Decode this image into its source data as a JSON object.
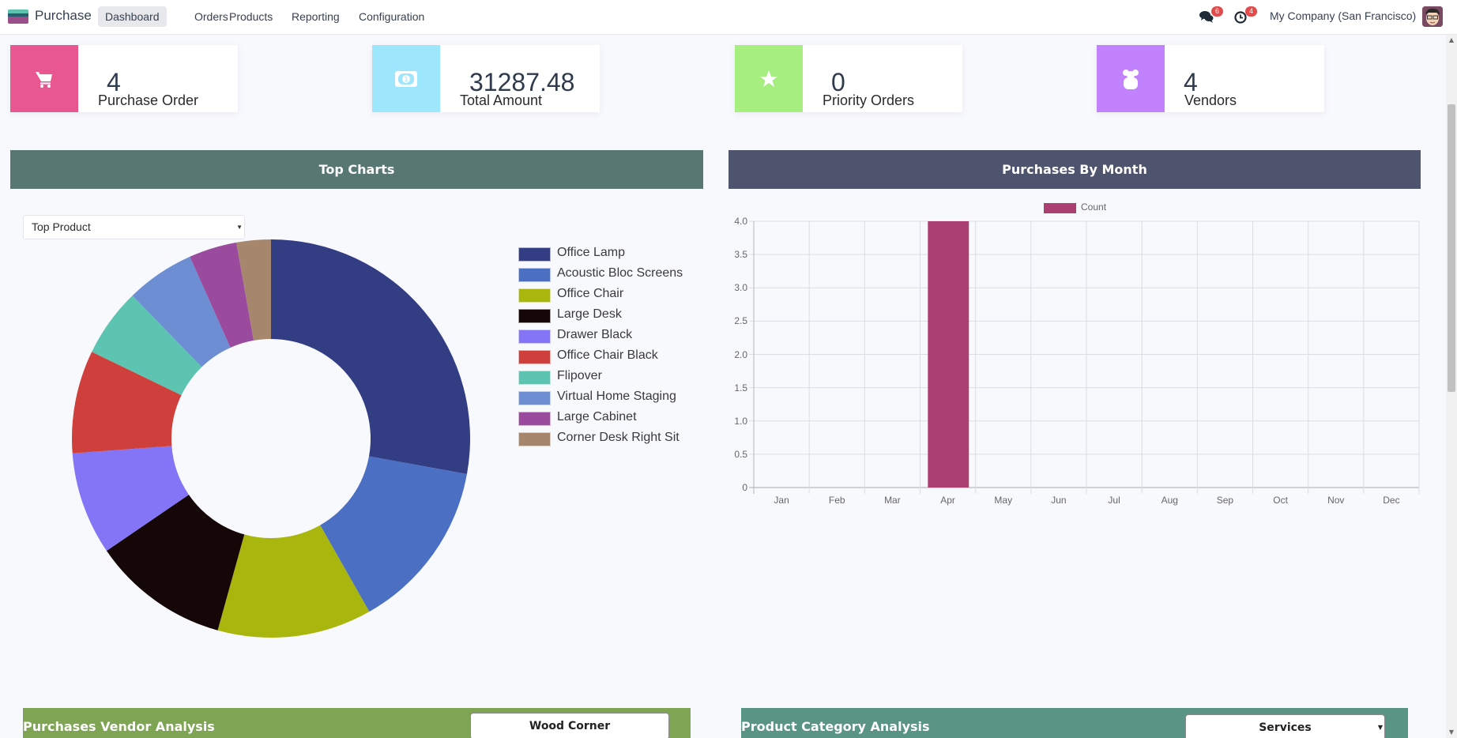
{
  "navbar": {
    "app_name": "Purchase",
    "menu": [
      "Dashboard",
      "Orders",
      "Products",
      "Reporting",
      "Configuration"
    ],
    "active_menu": "Dashboard",
    "messages_badge": "6",
    "activities_badge": "4",
    "company": "My Company (San Francisco)"
  },
  "kpis": [
    {
      "value": "4",
      "label": "Purchase Order",
      "icon": "cart-icon",
      "color": "#e8578f"
    },
    {
      "value": "31287.48",
      "label": "Total Amount",
      "icon": "money-icon",
      "color": "#9de6fb"
    },
    {
      "value": "0",
      "label": "Priority Orders",
      "icon": "star-icon",
      "color": "#a6ee7f"
    },
    {
      "value": "4",
      "label": "Vendors",
      "icon": "users-icon",
      "color": "#c281fd"
    }
  ],
  "top_charts": {
    "title": "Top Charts",
    "header_color": "#587672",
    "select_value": "Top Product"
  },
  "purchases_by_month": {
    "title": "Purchases By Month",
    "header_color": "#4e546e"
  },
  "bottom": {
    "vendor_title": "Purchases Vendor Analysis",
    "vendor_button": "Wood Corner",
    "vendor_color": "#7ea454",
    "category_title": "Product Category Analysis",
    "category_select": "Services",
    "category_color": "#5a9485"
  },
  "chart_data": [
    {
      "type": "pie",
      "variant": "doughnut",
      "title": "Top Product",
      "categories": [
        "Office Lamp",
        "Acoustic Bloc Screens",
        "Office Chair",
        "Large Desk",
        "Drawer Black",
        "Office Chair Black",
        "Flipover",
        "Virtual Home Staging",
        "Large Cabinet",
        "Corner Desk Right Sit"
      ],
      "values": [
        10,
        5,
        4.5,
        4,
        3,
        3,
        2,
        2,
        1.4,
        1
      ],
      "colors": [
        "#333d83",
        "#4a6fc3",
        "#a8b60e",
        "#150607",
        "#8375f5",
        "#cf403d",
        "#5dc4b1",
        "#6d8ed3",
        "#9a4b9e",
        "#a6866c"
      ],
      "legend": "right"
    },
    {
      "type": "bar",
      "title": "Purchases By Month",
      "categories": [
        "Jan",
        "Feb",
        "Mar",
        "Apr",
        "May",
        "Jun",
        "Jul",
        "Aug",
        "Sep",
        "Oct",
        "Nov",
        "Dec"
      ],
      "series": [
        {
          "name": "Count",
          "values": [
            0,
            0,
            0,
            4,
            0,
            0,
            0,
            0,
            0,
            0,
            0,
            0
          ],
          "color": "#ab3f71"
        }
      ],
      "yticks": [
        "0",
        "0.5",
        "1.0",
        "1.5",
        "2.0",
        "2.5",
        "3.0",
        "3.5",
        "4.0"
      ],
      "ylim": [
        0,
        4
      ],
      "grid": true,
      "legend": "top"
    }
  ]
}
